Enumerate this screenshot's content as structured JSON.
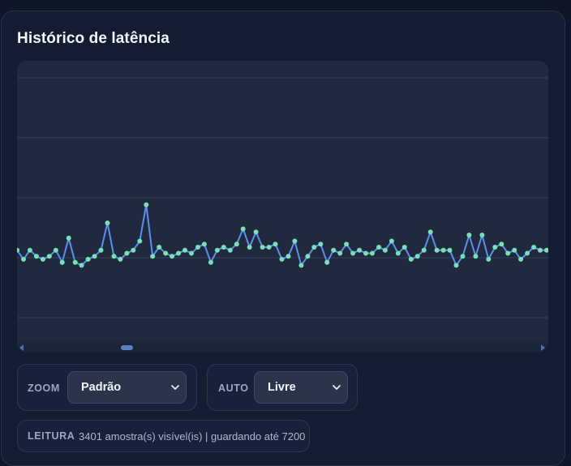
{
  "title": "Histórico de latência",
  "colors": {
    "line": "#5b8ff0",
    "point": "#78e0b4",
    "grid": "#343e56",
    "background": "#20293d"
  },
  "chart_data": {
    "type": "line",
    "title": "Histórico de latência",
    "grid": true,
    "series": [
      {
        "values": [
          22,
          19,
          22,
          20,
          19,
          20,
          22,
          18,
          26,
          18,
          17,
          19,
          20,
          22,
          31,
          20,
          19,
          21,
          22,
          25,
          37,
          20,
          23,
          21,
          20,
          21,
          22,
          21,
          23,
          24,
          18,
          22,
          23,
          22,
          24,
          29,
          23,
          28,
          23,
          23,
          24,
          19,
          20,
          25,
          17,
          20,
          23,
          24,
          18,
          22,
          21,
          24,
          21,
          22,
          21,
          21,
          23,
          22,
          25,
          21,
          23,
          19,
          20,
          22,
          28,
          22,
          22,
          22,
          17,
          20,
          27,
          20,
          27,
          19,
          23,
          24,
          21,
          22,
          19,
          21,
          23,
          22,
          22
        ]
      }
    ]
  },
  "controls": {
    "zoom": {
      "label": "ZOOM",
      "value": "Padrão"
    },
    "auto": {
      "label": "AUTO",
      "value": "Livre"
    }
  },
  "info": {
    "label": "LEITURA",
    "text": "3401 amostra(s) visível(is) | guardando até 7200"
  }
}
